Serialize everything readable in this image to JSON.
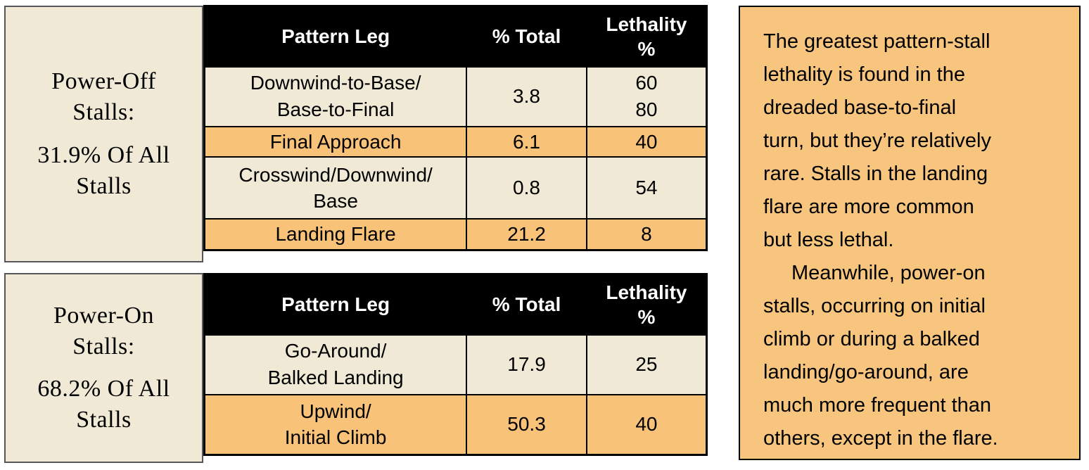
{
  "left_panels": [
    {
      "title": "Power-Off\nStalls:",
      "subtitle": "31.9% Of All\nStalls"
    },
    {
      "title": "Power-On\nStalls:",
      "subtitle": "68.2% Of All\nStalls"
    }
  ],
  "tables": [
    {
      "headers": {
        "leg": "Pattern Leg",
        "total": "% Total",
        "lethality": "Lethality\n%"
      },
      "rows": [
        {
          "leg": "Downwind-to-Base/\nBase-to-Final",
          "total": "3.8",
          "lethality": "60\n80"
        },
        {
          "leg": "Final Approach",
          "total": "6.1",
          "lethality": "40"
        },
        {
          "leg": "Crosswind/Downwind/\nBase",
          "total": "0.8",
          "lethality": "54"
        },
        {
          "leg": "Landing Flare",
          "total": "21.2",
          "lethality": "8"
        }
      ]
    },
    {
      "headers": {
        "leg": "Pattern Leg",
        "total": "% Total",
        "lethality": "Lethality\n%"
      },
      "rows": [
        {
          "leg": "Go-Around/\nBalked Landing",
          "total": "17.9",
          "lethality": "25"
        },
        {
          "leg": "Upwind/\nInitial Climb",
          "total": "50.3",
          "lethality": "40"
        }
      ]
    }
  ],
  "note_box": {
    "paragraph1": "The greatest pattern-stall\nlethality is found in the\ndreaded base-to-final\nturn, but they’re relatively\nrare. Stalls in the landing\nflare are more common\nbut less lethal.",
    "paragraph2": "Meanwhile, power-on\nstalls, occurring on initial\nclimb or during a balked\nlanding/go-around, are\nmuch more frequent than\nothers, except in the flare."
  },
  "colors": {
    "cream": "#f0e9d6",
    "orange": "#f8c278",
    "note_orange": "#f8c57e",
    "header_bg": "#000000",
    "header_text": "#ffffff",
    "label_border": "#55555a"
  },
  "chart_data": [
    {
      "type": "table",
      "title": "Power-Off Stalls: 31.9% Of All Stalls",
      "columns": [
        "Pattern Leg",
        "% Total",
        "Lethality %"
      ],
      "rows": [
        [
          "Downwind-to-Base/Base-to-Final",
          3.8,
          "60/80"
        ],
        [
          "Final Approach",
          6.1,
          40
        ],
        [
          "Crosswind/Downwind/Base",
          0.8,
          54
        ],
        [
          "Landing Flare",
          21.2,
          8
        ]
      ]
    },
    {
      "type": "table",
      "title": "Power-On Stalls: 68.2% Of All Stalls",
      "columns": [
        "Pattern Leg",
        "% Total",
        "Lethality %"
      ],
      "rows": [
        [
          "Go-Around/Balked Landing",
          17.9,
          25
        ],
        [
          "Upwind/Initial Climb",
          50.3,
          40
        ]
      ]
    }
  ]
}
